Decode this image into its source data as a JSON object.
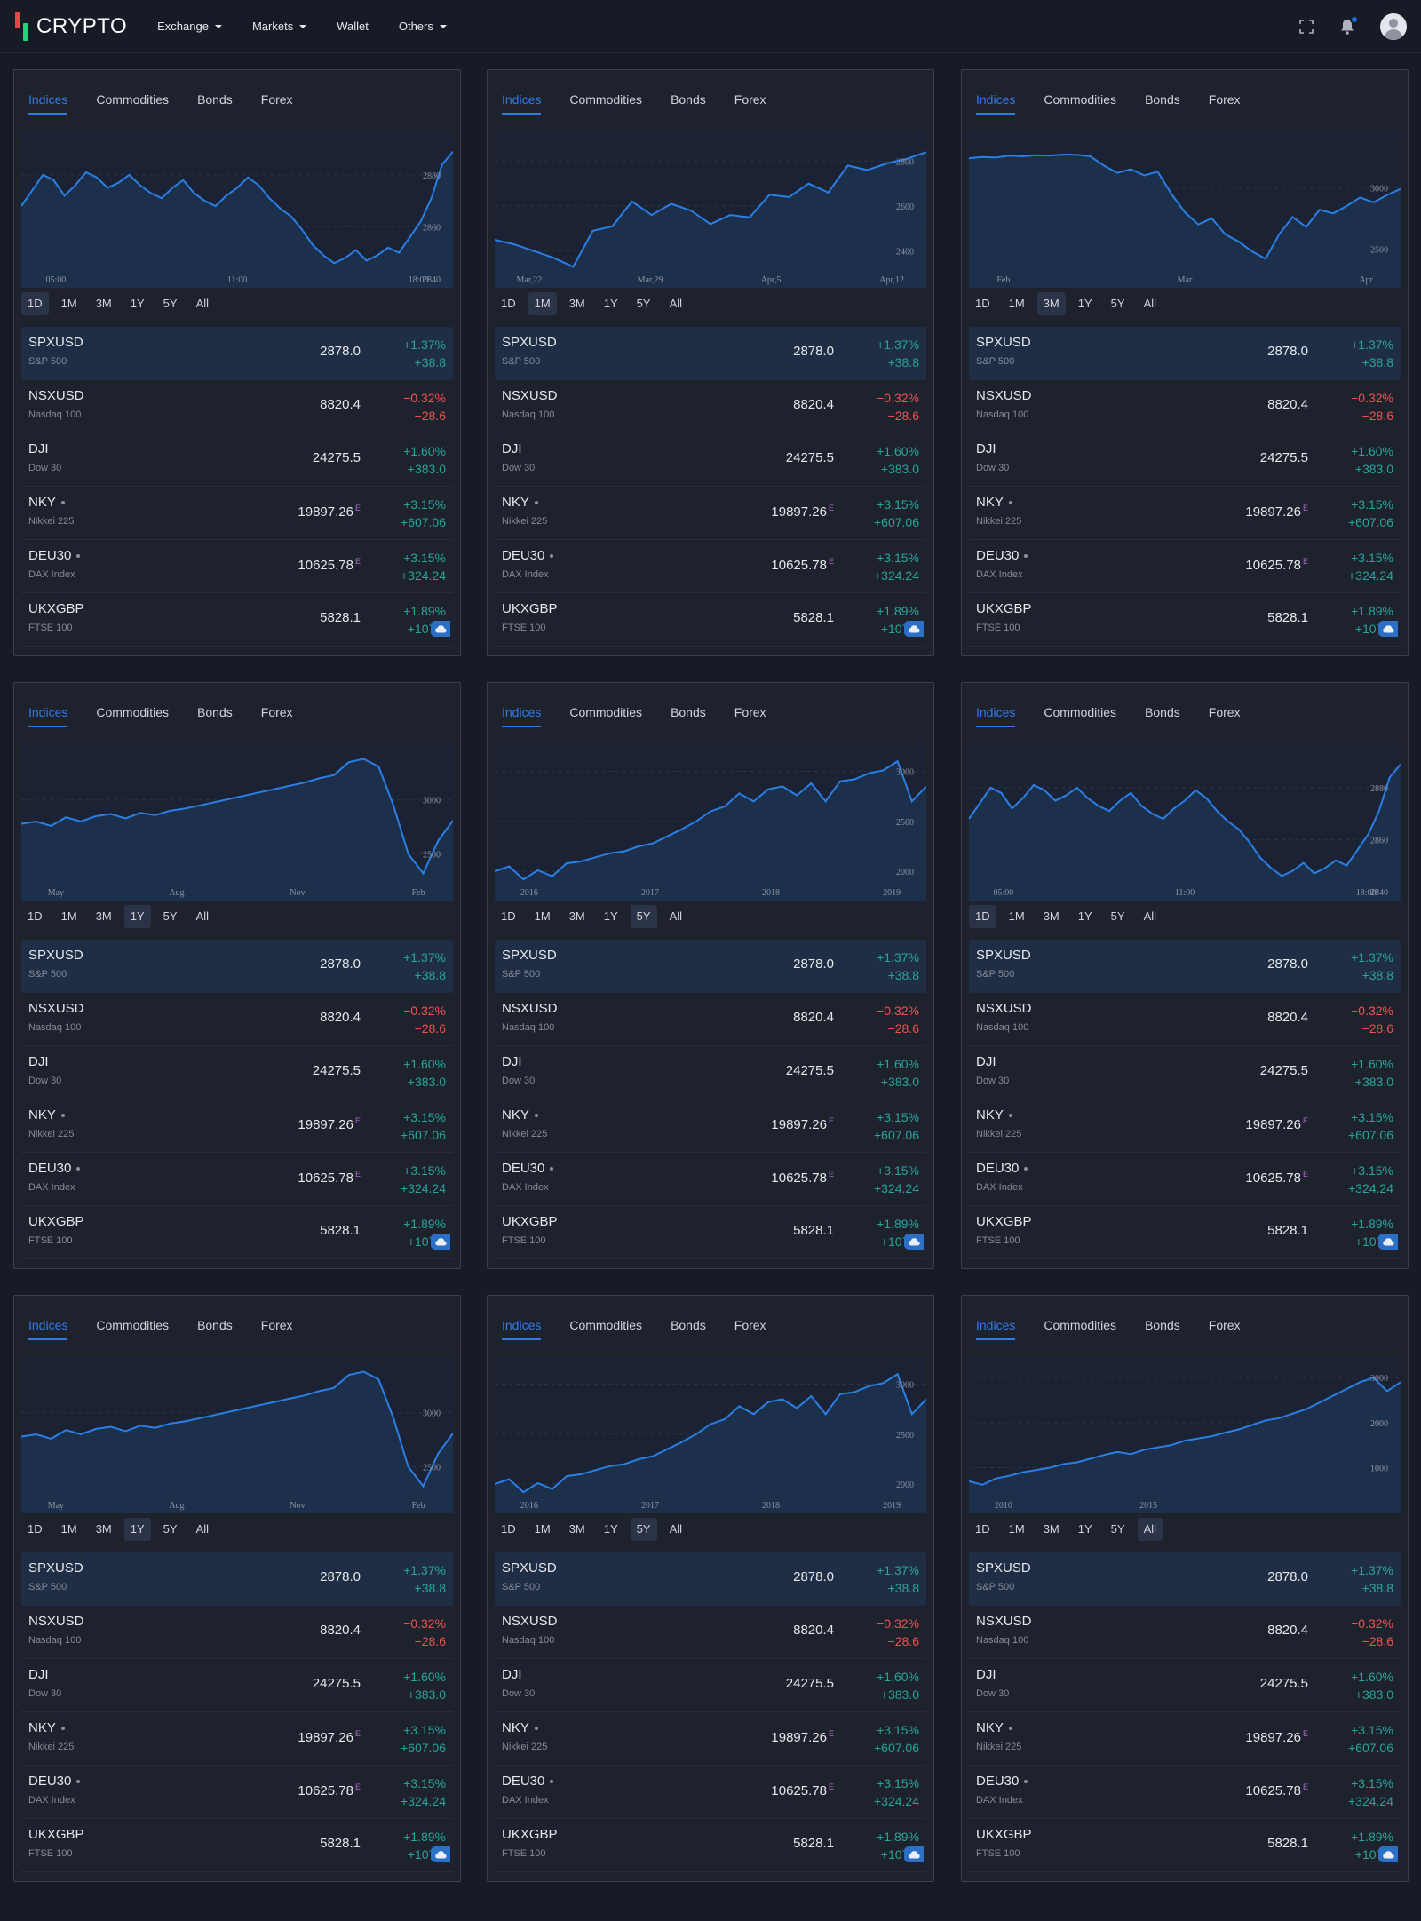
{
  "brand": {
    "name": "CRYPTO"
  },
  "nav": {
    "items": [
      "Exchange",
      "Markets",
      "Wallet",
      "Others"
    ],
    "dropdown": [
      true,
      true,
      false,
      true
    ]
  },
  "icons": [
    "fullscreen-icon",
    "bell-icon",
    "user-avatar-icon"
  ],
  "colors": {
    "accent": "#2f7be8",
    "up": "#26a69a",
    "down": "#ef5350",
    "line": "#2a7fe6",
    "fill": "#1f3250"
  },
  "widget": {
    "tabs": [
      "Indices",
      "Commodities",
      "Bonds",
      "Forex"
    ],
    "ranges": [
      "1D",
      "1M",
      "3M",
      "1Y",
      "5Y",
      "All"
    ],
    "rows": [
      {
        "symbol": "SPXUSD",
        "name": "S&P 500",
        "price": "2878.0",
        "pct": "+1.37%",
        "abs": "+38.8",
        "dir": "up",
        "dot": false,
        "eod": ""
      },
      {
        "symbol": "NSXUSD",
        "name": "Nasdaq 100",
        "price": "8820.4",
        "pct": "−0.32%",
        "abs": "−28.6",
        "dir": "down",
        "dot": false,
        "eod": ""
      },
      {
        "symbol": "DJI",
        "name": "Dow 30",
        "price": "24275.5",
        "pct": "+1.60%",
        "abs": "+383.0",
        "dir": "up",
        "dot": false,
        "eod": ""
      },
      {
        "symbol": "NKY",
        "name": "Nikkei 225",
        "price": "19897.26",
        "pct": "+3.15%",
        "abs": "+607.06",
        "dir": "up",
        "dot": true,
        "eod": "E"
      },
      {
        "symbol": "DEU30",
        "name": "DAX Index",
        "price": "10625.78",
        "pct": "+3.15%",
        "abs": "+324.24",
        "dir": "up",
        "dot": true,
        "eod": "E"
      },
      {
        "symbol": "UKXGBP",
        "name": "FTSE 100",
        "price": "5828.1",
        "pct": "+1.89%",
        "abs": "+107.?",
        "dir": "up",
        "dot": false,
        "eod": ""
      }
    ]
  },
  "panels": [
    {
      "active_range": "1D",
      "chart_data": {
        "type": "area",
        "series": [
          {
            "values": [
              2868,
              2874,
              2880,
              2878,
              2872,
              2876,
              2881,
              2879,
              2875,
              2877,
              2880,
              2876,
              2873,
              2871,
              2875,
              2878,
              2873,
              2870,
              2868,
              2872,
              2875,
              2879,
              2876,
              2871,
              2867,
              2864,
              2859,
              2853,
              2849,
              2846,
              2848,
              2851,
              2847,
              2849,
              2852,
              2850,
              2856,
              2862,
              2871,
              2884,
              2889
            ]
          }
        ],
        "ylabels": [
          "2880",
          "2860",
          "2840"
        ],
        "ylim": [
          2842,
          2894
        ],
        "xlabels": [
          "05:00",
          "11:00",
          "18:00"
        ]
      }
    },
    {
      "active_range": "1M",
      "chart_data": {
        "type": "area",
        "series": [
          {
            "values": [
              2450,
              2430,
              2400,
              2370,
              2330,
              2490,
              2510,
              2620,
              2560,
              2610,
              2580,
              2520,
              2560,
              2550,
              2650,
              2640,
              2700,
              2660,
              2780,
              2760,
              2790,
              2810,
              2840
            ]
          }
        ],
        "ylabels": [
          "2800",
          "2600",
          "2400"
        ],
        "ylim": [
          2300,
          2900
        ],
        "xlabels": [
          "Mar,22",
          "Mar,29",
          "Apr,5",
          "Apr,12"
        ]
      }
    },
    {
      "active_range": "3M",
      "chart_data": {
        "type": "area",
        "series": [
          {
            "values": [
              3240,
              3250,
              3245,
              3260,
              3255,
              3265,
              3262,
              3270,
              3268,
              3255,
              3180,
              3120,
              3150,
              3100,
              3130,
              2950,
              2800,
              2700,
              2750,
              2620,
              2560,
              2480,
              2420,
              2620,
              2760,
              2680,
              2820,
              2790,
              2850,
              2920,
              2880,
              2940,
              2990
            ]
          }
        ],
        "ylabels": [
          "3000",
          "2500"
        ],
        "ylim": [
          2300,
          3400
        ],
        "xlabels": [
          "Feb",
          "Mar",
          "Apr"
        ]
      }
    },
    {
      "active_range": "1Y",
      "chart_data": {
        "type": "area",
        "series": [
          {
            "values": [
              2780,
              2800,
              2760,
              2840,
              2800,
              2850,
              2870,
              2830,
              2880,
              2860,
              2900,
              2920,
              2950,
              2980,
              3010,
              3040,
              3070,
              3100,
              3130,
              3160,
              3200,
              3230,
              3350,
              3380,
              3310,
              2950,
              2500,
              2320,
              2620,
              2810
            ]
          }
        ],
        "ylabels": [
          "3000",
          "2500"
        ],
        "ylim": [
          2200,
          3450
        ],
        "xlabels": [
          "May",
          "Aug",
          "Nov",
          "Feb"
        ]
      }
    },
    {
      "active_range": "5Y",
      "chart_data": {
        "type": "area",
        "series": [
          {
            "values": [
              2000,
              2050,
              1920,
              2010,
              1950,
              2080,
              2100,
              2140,
              2180,
              2200,
              2250,
              2280,
              2350,
              2420,
              2500,
              2600,
              2650,
              2780,
              2700,
              2820,
              2850,
              2760,
              2880,
              2700,
              2900,
              2920,
              2980,
              3010,
              3100,
              2700,
              2850
            ]
          }
        ],
        "ylabels": [
          "3000",
          "2500",
          "2000"
        ],
        "ylim": [
          1850,
          3200
        ],
        "xlabels": [
          "2016",
          "2017",
          "2018",
          "2019"
        ]
      }
    },
    {
      "active_range": "1D",
      "chart_data": {
        "type": "area",
        "series": [
          {
            "values": [
              2868,
              2874,
              2880,
              2878,
              2872,
              2876,
              2881,
              2879,
              2875,
              2877,
              2880,
              2876,
              2873,
              2871,
              2875,
              2878,
              2873,
              2870,
              2868,
              2872,
              2875,
              2879,
              2876,
              2871,
              2867,
              2864,
              2859,
              2853,
              2849,
              2846,
              2848,
              2851,
              2847,
              2849,
              2852,
              2850,
              2856,
              2862,
              2871,
              2884,
              2889
            ]
          }
        ],
        "ylabels": [
          "2880",
          "2860",
          "2840"
        ],
        "ylim": [
          2842,
          2894
        ],
        "xlabels": [
          "05:00",
          "11:00",
          "18:00"
        ]
      }
    },
    {
      "active_range": "1Y",
      "chart_data": {
        "type": "area",
        "series": [
          {
            "values": [
              2780,
              2800,
              2760,
              2840,
              2800,
              2850,
              2870,
              2830,
              2880,
              2860,
              2900,
              2920,
              2950,
              2980,
              3010,
              3040,
              3070,
              3100,
              3130,
              3160,
              3200,
              3230,
              3350,
              3380,
              3310,
              2950,
              2500,
              2320,
              2620,
              2810
            ]
          }
        ],
        "ylabels": [
          "3000",
          "2500"
        ],
        "ylim": [
          2200,
          3450
        ],
        "xlabels": [
          "May",
          "Aug",
          "Nov",
          "Feb"
        ]
      }
    },
    {
      "active_range": "5Y",
      "chart_data": {
        "type": "area",
        "series": [
          {
            "values": [
              2000,
              2050,
              1920,
              2010,
              1950,
              2080,
              2100,
              2140,
              2180,
              2200,
              2250,
              2280,
              2350,
              2420,
              2500,
              2600,
              2650,
              2780,
              2700,
              2820,
              2850,
              2760,
              2880,
              2700,
              2900,
              2920,
              2980,
              3010,
              3100,
              2700,
              2850
            ]
          }
        ],
        "ylabels": [
          "3000",
          "2500",
          "2000"
        ],
        "ylim": [
          1850,
          3200
        ],
        "xlabels": [
          "2016",
          "2017",
          "2018",
          "2019"
        ]
      }
    },
    {
      "active_range": "All",
      "chart_data": {
        "type": "area",
        "series": [
          {
            "values": [
              700,
              620,
              760,
              820,
              900,
              950,
              1000,
              1080,
              1120,
              1200,
              1280,
              1350,
              1300,
              1400,
              1450,
              1500,
              1600,
              1650,
              1700,
              1780,
              1850,
              1950,
              2050,
              2100,
              2200,
              2300,
              2450,
              2600,
              2750,
              2900,
              3000,
              2700,
              2900
            ]
          }
        ],
        "ylabels": [
          "3000",
          "2000",
          "1000"
        ],
        "ylim": [
          300,
          3300
        ],
        "xlabels": [
          "2010",
          "2015"
        ]
      }
    }
  ]
}
